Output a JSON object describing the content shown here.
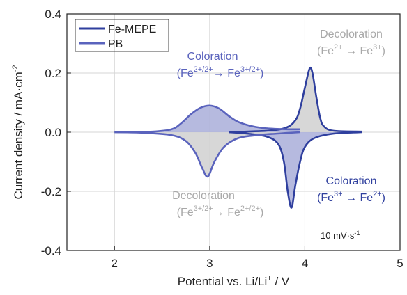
{
  "chart_data": {
    "type": "line",
    "xlabel": "Potential vs. Li/Li",
    "xlabel_sup": "+",
    "xlabel_tail": " / V",
    "ylabel": "Current density / mA·cm",
    "ylabel_sup": "-2",
    "xlim": [
      1.5,
      5.0
    ],
    "ylim": [
      -0.4,
      0.4
    ],
    "x_ticks": [
      2,
      3,
      4,
      5
    ],
    "y_ticks": [
      -0.4,
      -0.2,
      0.0,
      0.2,
      0.4
    ],
    "y_tick_labels": [
      "-0.4",
      "-0.2",
      "0.0",
      "0.2",
      "0.4"
    ],
    "grid": true,
    "legend_position": "top-left",
    "scan_rate_label": "10 mV·s",
    "scan_rate_sup": "-1",
    "series": [
      {
        "name": "Fe-MEPE",
        "color": "#2f3f9e",
        "anodic": [
          [
            3.2,
            0.0
          ],
          [
            3.6,
            0.005
          ],
          [
            3.8,
            0.015
          ],
          [
            3.9,
            0.04
          ],
          [
            3.95,
            0.08
          ],
          [
            4.0,
            0.15
          ],
          [
            4.05,
            0.215
          ],
          [
            4.08,
            0.2
          ],
          [
            4.12,
            0.12
          ],
          [
            4.16,
            0.05
          ],
          [
            4.2,
            0.02
          ],
          [
            4.3,
            0.005
          ],
          [
            4.6,
            0.002
          ]
        ],
        "cathodic": [
          [
            4.6,
            0.0
          ],
          [
            4.3,
            -0.005
          ],
          [
            4.1,
            -0.02
          ],
          [
            4.0,
            -0.05
          ],
          [
            3.95,
            -0.1
          ],
          [
            3.9,
            -0.18
          ],
          [
            3.86,
            -0.255
          ],
          [
            3.82,
            -0.2
          ],
          [
            3.78,
            -0.1
          ],
          [
            3.72,
            -0.04
          ],
          [
            3.6,
            -0.015
          ],
          [
            3.4,
            -0.005
          ],
          [
            3.2,
            0.0
          ]
        ]
      },
      {
        "name": "PB",
        "color": "#5a63bd",
        "anodic": [
          [
            2.0,
            0.0
          ],
          [
            2.4,
            0.002
          ],
          [
            2.6,
            0.01
          ],
          [
            2.7,
            0.03
          ],
          [
            2.8,
            0.06
          ],
          [
            2.9,
            0.082
          ],
          [
            3.0,
            0.09
          ],
          [
            3.1,
            0.08
          ],
          [
            3.2,
            0.055
          ],
          [
            3.3,
            0.035
          ],
          [
            3.45,
            0.02
          ],
          [
            3.6,
            0.013
          ],
          [
            3.8,
            0.01
          ],
          [
            3.95,
            0.01
          ]
        ],
        "cathodic": [
          [
            3.95,
            0.0
          ],
          [
            3.7,
            -0.005
          ],
          [
            3.5,
            -0.01
          ],
          [
            3.3,
            -0.02
          ],
          [
            3.15,
            -0.05
          ],
          [
            3.05,
            -0.1
          ],
          [
            2.98,
            -0.15
          ],
          [
            2.92,
            -0.12
          ],
          [
            2.85,
            -0.07
          ],
          [
            2.75,
            -0.03
          ],
          [
            2.6,
            -0.01
          ],
          [
            2.3,
            -0.002
          ],
          [
            2.0,
            0.0
          ]
        ]
      }
    ],
    "annotations": [
      {
        "id": "pb-coloration",
        "color": "#5a63bd",
        "line1": "Coloration",
        "line2": [
          [
            "t",
            "(Fe"
          ],
          [
            "s",
            "2+/2+"
          ],
          [
            "t",
            "→ Fe"
          ],
          [
            "s",
            "3+/2+"
          ],
          [
            "t",
            ")"
          ]
        ]
      },
      {
        "id": "fe-decoloration",
        "color": "#a8a8a8",
        "line1": "Decoloration",
        "line2": [
          [
            "t",
            "(Fe"
          ],
          [
            "s",
            "2+"
          ],
          [
            "t",
            " → Fe"
          ],
          [
            "s",
            "3+"
          ],
          [
            "t",
            ")"
          ]
        ]
      },
      {
        "id": "pb-decoloration",
        "color": "#a8a8a8",
        "line1": "Decoloration",
        "line2": [
          [
            "t",
            "(Fe"
          ],
          [
            "s",
            "3+/2+"
          ],
          [
            "t",
            "→ Fe"
          ],
          [
            "s",
            "2+/2+"
          ],
          [
            "t",
            ")"
          ]
        ]
      },
      {
        "id": "fe-coloration",
        "color": "#2f3f9e",
        "line1": "Coloration",
        "line2": [
          [
            "t",
            "(Fe"
          ],
          [
            "s",
            "3+"
          ],
          [
            "t",
            " → Fe"
          ],
          [
            "s",
            "2+"
          ],
          [
            "t",
            ")"
          ]
        ]
      }
    ]
  }
}
